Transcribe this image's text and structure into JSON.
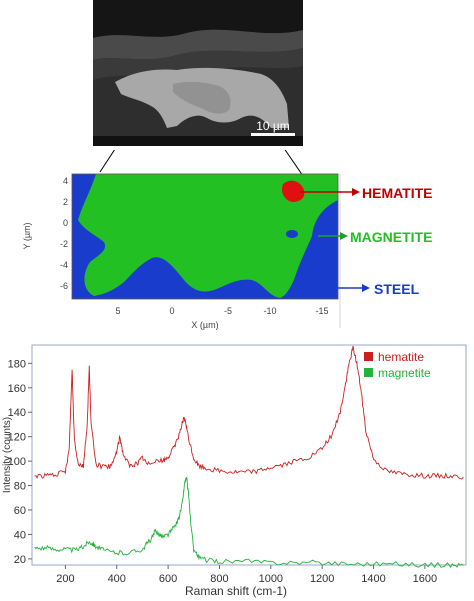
{
  "sem_image": {
    "scale_bar_label": "10 µm"
  },
  "phase_map": {
    "y_axis_label": "Y (µm)",
    "x_axis_label": "X (µm)",
    "y_ticks": [
      "4",
      "2",
      "0",
      "-2",
      "-4",
      "-6"
    ],
    "x_ticks": [
      "5",
      "0",
      "-5",
      "-10",
      "-15"
    ],
    "phases": [
      {
        "label": "HEMATITE",
        "color": "#c00000"
      },
      {
        "label": "MAGNETITE",
        "color": "#22c022"
      },
      {
        "label": "STEEL",
        "color": "#1a3ccc"
      }
    ]
  },
  "chart_data": {
    "type": "line",
    "title": "",
    "xlabel": "Raman shift (cm-1)",
    "ylabel": "Intensity (counts)",
    "xlim": [
      70,
      1760
    ],
    "ylim": [
      15,
      195
    ],
    "x_ticks": [
      200,
      400,
      600,
      800,
      1000,
      1200,
      1400,
      1600
    ],
    "y_ticks": [
      20,
      40,
      60,
      80,
      100,
      120,
      140,
      160,
      180
    ],
    "legend_position": "top-right",
    "series": [
      {
        "name": "hematite",
        "color": "#cc2020",
        "x": [
          80,
          120,
          160,
          200,
          215,
          226,
          235,
          250,
          270,
          285,
          293,
          300,
          320,
          350,
          380,
          400,
          412,
          425,
          450,
          480,
          500,
          520,
          550,
          580,
          600,
          620,
          640,
          660,
          668,
          680,
          700,
          720,
          750,
          800,
          850,
          900,
          950,
          1000,
          1050,
          1100,
          1150,
          1200,
          1240,
          1270,
          1290,
          1305,
          1320,
          1335,
          1350,
          1370,
          1400,
          1450,
          1500,
          1550,
          1600,
          1650,
          1700,
          1750
        ],
        "y": [
          88,
          88,
          89,
          91,
          110,
          175,
          118,
          98,
          96,
          130,
          177,
          130,
          97,
          95,
          96,
          108,
          120,
          106,
          96,
          98,
          103,
          97,
          101,
          100,
          103,
          110,
          120,
          135,
          132,
          118,
          102,
          96,
          94,
          92,
          91,
          91,
          92,
          95,
          97,
          100,
          103,
          110,
          122,
          140,
          162,
          180,
          193,
          180,
          160,
          125,
          102,
          92,
          90,
          89,
          88,
          88,
          88,
          87
        ]
      },
      {
        "name": "magnetite",
        "color": "#22b33a",
        "x": [
          80,
          120,
          160,
          200,
          240,
          270,
          290,
          305,
          320,
          350,
          400,
          450,
          500,
          520,
          540,
          550,
          560,
          580,
          600,
          620,
          640,
          655,
          665,
          672,
          680,
          690,
          700,
          720,
          750,
          800,
          900,
          1000,
          1100,
          1200,
          1300,
          1400,
          1500,
          1600,
          1700,
          1750
        ],
        "y": [
          29,
          29,
          28,
          28,
          27,
          30,
          34,
          33,
          30,
          27,
          25,
          25,
          28,
          33,
          38,
          43,
          41,
          38,
          40,
          45,
          52,
          65,
          83,
          86,
          72,
          45,
          28,
          21,
          19,
          18,
          18,
          17,
          17,
          17,
          16,
          16,
          16,
          15,
          15,
          15
        ]
      }
    ]
  }
}
